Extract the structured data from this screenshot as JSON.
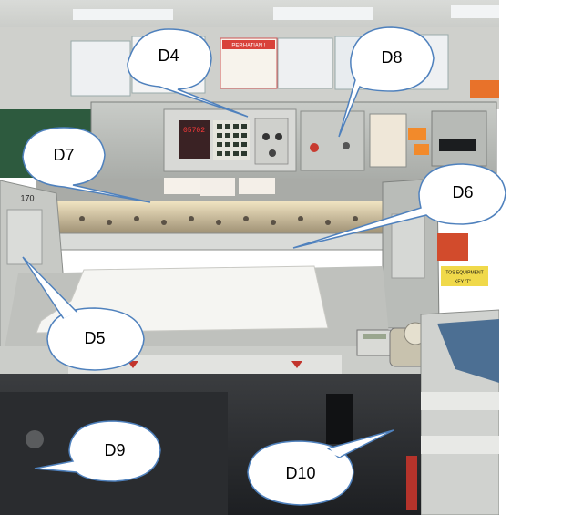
{
  "photo": {
    "subject": "paper guillotine cutting machine"
  },
  "callouts": [
    {
      "id": "d4",
      "label": "D4"
    },
    {
      "id": "d8",
      "label": "D8"
    },
    {
      "id": "d7",
      "label": "D7"
    },
    {
      "id": "d6",
      "label": "D6"
    },
    {
      "id": "d5",
      "label": "D5"
    },
    {
      "id": "d9",
      "label": "D9"
    },
    {
      "id": "d10",
      "label": "D10"
    }
  ],
  "machine_text": {
    "sign_perhatian": "PERHATIAN !",
    "model_number": "170",
    "display_digits": "05702",
    "equipment_label": "TOS EQUIPMENT",
    "key_label": "KEY \"T\""
  },
  "colors": {
    "callout_fill": "#ffffff",
    "callout_stroke": "#4f81bd",
    "machine_gray": "#b9bcb8",
    "display_red": "#e02424"
  }
}
